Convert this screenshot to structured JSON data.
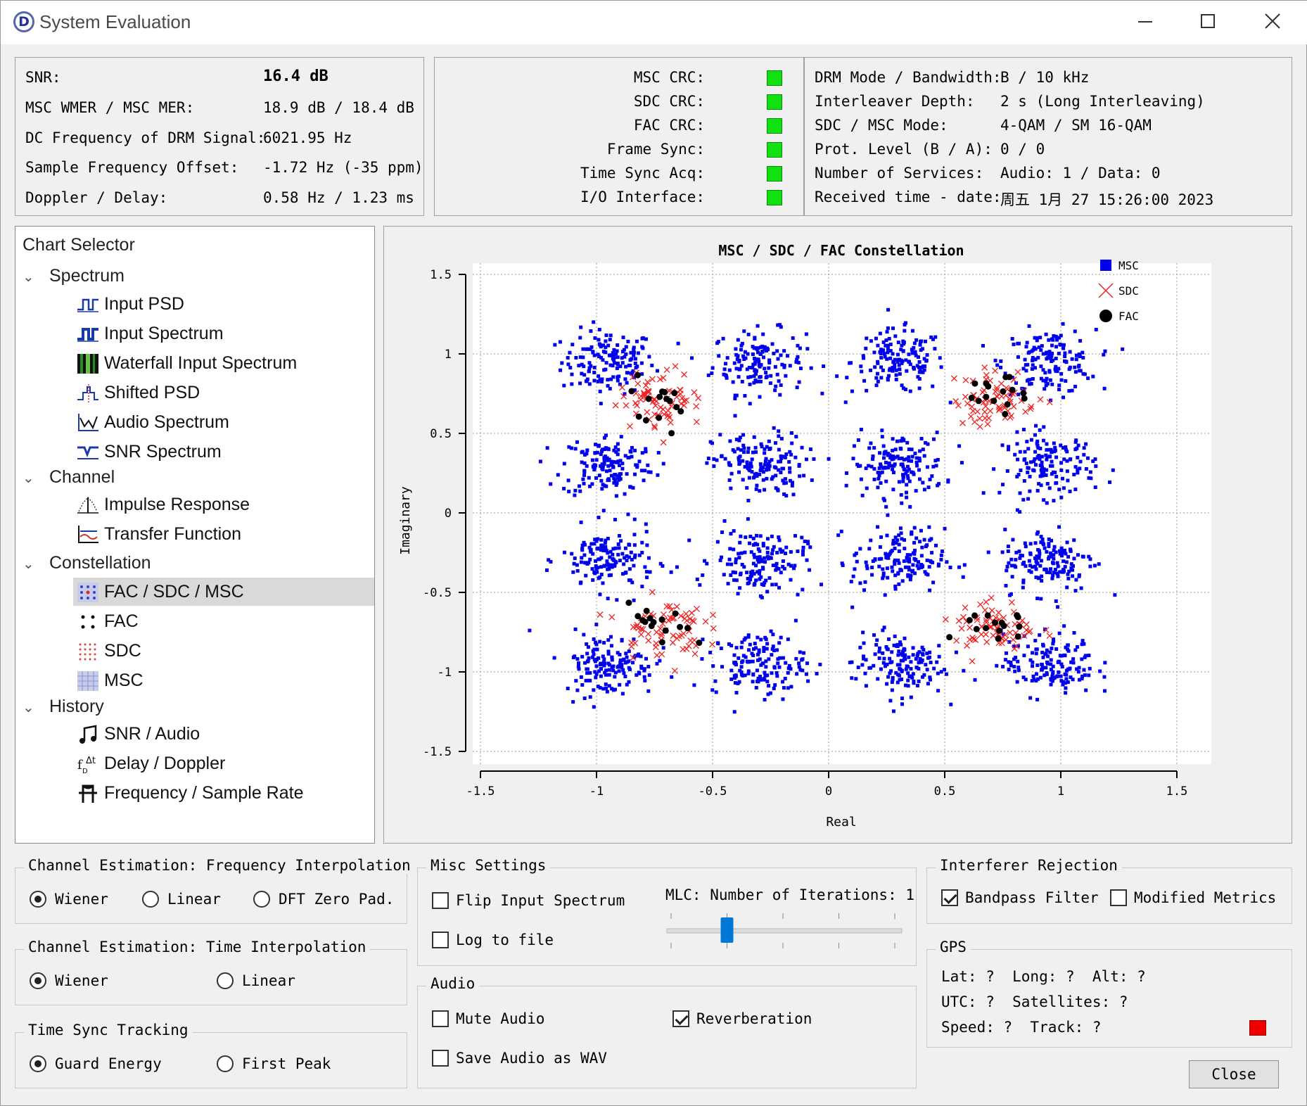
{
  "window": {
    "title": "System Evaluation"
  },
  "status": {
    "snr_label": "SNR:",
    "snr_value": "16.4 dB",
    "wmer_label": "MSC WMER / MSC MER:",
    "wmer_value": "18.9 dB / 18.4 dB",
    "dc_label": "DC Frequency of DRM Signal:",
    "dc_value": "6021.95 Hz",
    "sfo_label": "Sample Frequency Offset:",
    "sfo_value": "-1.72 Hz (-35 ppm)",
    "doppler_label": "Doppler / Delay:",
    "doppler_value": "0.58 Hz / 1.23 ms"
  },
  "crc": {
    "msc": "MSC CRC:",
    "sdc": "SDC CRC:",
    "fac": "FAC CRC:",
    "frame": "Frame Sync:",
    "time": "Time Sync Acq:",
    "io": "I/O Interface:",
    "ok_color": "#11e011"
  },
  "mode": {
    "mode_label": "DRM Mode / Bandwidth:",
    "mode_value": "B / 10 kHz",
    "il_label": "Interleaver Depth:",
    "il_value": "2 s (Long Interleaving)",
    "sdc_label": "SDC / MSC Mode:",
    "sdc_value": "4-QAM / SM 16-QAM",
    "prot_label": "Prot. Level (B / A):",
    "prot_value": "0 / 0",
    "svc_label": "Number of Services:",
    "svc_value": "Audio: 1 / Data: 0",
    "recv_label": "Received time - date:",
    "recv_value": "周五 1月 27 15:26:00 2023"
  },
  "tree": {
    "header": "Chart Selector",
    "spectrum": "Spectrum",
    "input_psd": "Input PSD",
    "input_spectrum": "Input Spectrum",
    "waterfall": "Waterfall Input Spectrum",
    "shifted_psd": "Shifted PSD",
    "audio_spectrum": "Audio Spectrum",
    "snr_spectrum": "SNR Spectrum",
    "channel": "Channel",
    "impulse": "Impulse Response",
    "transfer": "Transfer Function",
    "constellation": "Constellation",
    "fac_sdc_msc": "FAC / SDC / MSC",
    "fac": "FAC",
    "sdc": "SDC",
    "msc": "MSC",
    "history": "History",
    "snr_audio": "SNR / Audio",
    "delay_doppler": "Delay / Doppler",
    "freq_rate": "Frequency / Sample Rate"
  },
  "chart_data": {
    "type": "scatter",
    "title": "MSC / SDC / FAC Constellation",
    "xlabel": "Real",
    "ylabel": "Imaginary",
    "xlim": [
      -1.5,
      1.5
    ],
    "ylim": [
      -1.5,
      1.5
    ],
    "xticks": [
      "-1.5",
      "-1",
      "-0.5",
      "0",
      "0.5",
      "1",
      "1.5"
    ],
    "yticks": [
      "1.5",
      "1",
      "0.5",
      "0",
      "-0.5",
      "-1",
      "-1.5"
    ],
    "grid": true,
    "legend_position": "right",
    "series": [
      {
        "name": "MSC",
        "color": "#0000ee",
        "marker": "square",
        "centers": [
          [
            -0.95,
            0.95
          ],
          [
            -0.3,
            0.95
          ],
          [
            0.3,
            0.95
          ],
          [
            0.95,
            0.95
          ],
          [
            -0.95,
            0.3
          ],
          [
            -0.3,
            0.3
          ],
          [
            0.3,
            0.3
          ],
          [
            0.95,
            0.3
          ],
          [
            -0.95,
            -0.3
          ],
          [
            -0.3,
            -0.3
          ],
          [
            0.3,
            -0.3
          ],
          [
            0.95,
            -0.3
          ],
          [
            -0.95,
            -0.95
          ],
          [
            -0.3,
            -0.95
          ],
          [
            0.3,
            -0.95
          ],
          [
            0.95,
            -0.95
          ]
        ],
        "spread": 0.1,
        "points_per_cluster": 150
      },
      {
        "name": "SDC",
        "color": "#ee2222",
        "marker": "x",
        "centers": [
          [
            -0.72,
            0.72
          ],
          [
            0.72,
            0.72
          ],
          [
            -0.72,
            -0.72
          ],
          [
            0.72,
            -0.72
          ]
        ],
        "spread": 0.09,
        "points_per_cluster": 70
      },
      {
        "name": "FAC",
        "color": "#000000",
        "marker": "circle",
        "centers": [
          [
            -0.72,
            0.72
          ],
          [
            0.72,
            0.72
          ],
          [
            -0.72,
            -0.72
          ],
          [
            0.72,
            -0.72
          ]
        ],
        "spread": 0.07,
        "points_per_cluster": 15
      }
    ]
  },
  "chan_freq": {
    "title": "Channel Estimation: Frequency Interpolation",
    "wiener": "Wiener",
    "linear": "Linear",
    "dft": "DFT Zero Pad."
  },
  "chan_time": {
    "title": "Channel Estimation: Time Interpolation",
    "wiener": "Wiener",
    "linear": "Linear"
  },
  "time_sync": {
    "title": "Time Sync Tracking",
    "guard": "Guard Energy",
    "first": "First Peak"
  },
  "misc": {
    "title": "Misc Settings",
    "flip": "Flip Input Spectrum",
    "log": "Log to file",
    "mlc_label": "MLC: Number of Iterations: 1",
    "mlc_value": 1,
    "mlc_max": 4
  },
  "audio": {
    "title": "Audio",
    "mute": "Mute Audio",
    "reverb": "Reverberation",
    "save": "Save Audio as WAV"
  },
  "interferer": {
    "title": "Interferer Rejection",
    "bandpass": "Bandpass Filter",
    "modified": "Modified Metrics"
  },
  "gps": {
    "title": "GPS",
    "line1": "Lat: ?  Long: ?  Alt: ?",
    "line2": "UTC: ?  Satellites: ?",
    "line3": "Speed: ?  Track: ?",
    "status_color": "#ee0000"
  },
  "buttons": {
    "close": "Close"
  }
}
